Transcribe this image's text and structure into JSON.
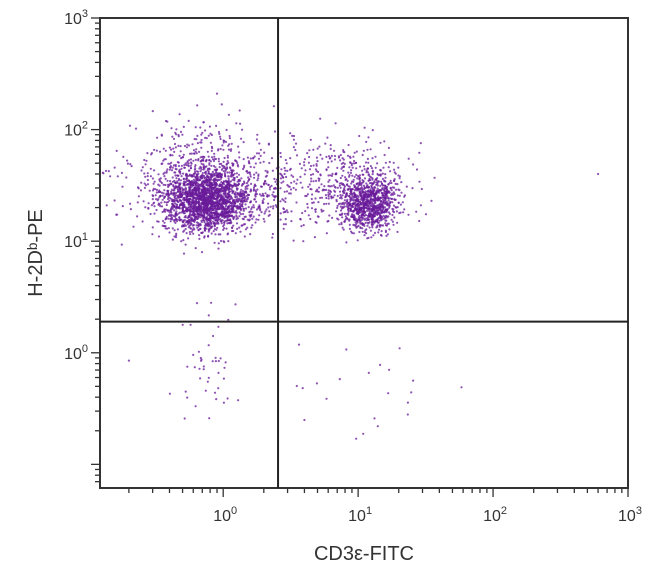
{
  "chart_data": {
    "type": "scatter",
    "title": "",
    "xlabel": "CD3ε-FITC",
    "ylabel": "H-2Dᵇ-PE",
    "x_scale": "log",
    "y_scale": "log",
    "xlim": [
      0.1222,
      1000
    ],
    "ylim": [
      0.0614,
      1000
    ],
    "x_ticks": [
      {
        "value": 1,
        "base": "10",
        "exp": "0"
      },
      {
        "value": 10,
        "base": "10",
        "exp": "1"
      },
      {
        "value": 100,
        "base": "10",
        "exp": "2"
      },
      {
        "value": 1000,
        "base": "10",
        "exp": "3"
      }
    ],
    "y_ticks": [
      {
        "value": 1,
        "base": "10",
        "exp": "0"
      },
      {
        "value": 10,
        "base": "10",
        "exp": "1"
      },
      {
        "value": 100,
        "base": "10",
        "exp": "2"
      },
      {
        "value": 1000,
        "base": "10",
        "exp": "3"
      }
    ],
    "quadrant_gates": {
      "x": 2.55,
      "y": 1.9
    },
    "grid": false,
    "legend": "none",
    "colors": {
      "points": "#6a1b9a",
      "axes": "#333333",
      "gates": "#222222"
    },
    "series": [
      {
        "populations": [
          {
            "center": [
              0.75,
              23
            ],
            "spread_log": [
              0.16,
              0.14
            ],
            "count": 2000
          },
          {
            "center": [
              0.7,
              40
            ],
            "spread_log": [
              0.28,
              0.22
            ],
            "count": 550
          },
          {
            "center": [
              12,
              22
            ],
            "spread_log": [
              0.1,
              0.12
            ],
            "count": 950
          },
          {
            "center": [
              8,
              35
            ],
            "spread_log": [
              0.25,
              0.2
            ],
            "count": 380
          },
          {
            "center": [
              2.0,
              28
            ],
            "spread_log": [
              0.2,
              0.18
            ],
            "count": 160
          },
          {
            "center": [
              0.8,
              0.8
            ],
            "spread_log": [
              0.15,
              0.25
            ],
            "count": 45
          },
          {
            "center": [
              10,
              0.5
            ],
            "spread_log": [
              0.3,
              0.3
            ],
            "count": 20
          }
        ],
        "points": [
          {
            "x": 600,
            "y": 40
          },
          {
            "x": 0.2,
            "y": 0.85
          },
          {
            "x": 0.9,
            "y": 210
          },
          {
            "x": 4.0,
            "y": 0.25
          },
          {
            "x": 14,
            "y": 0.22
          }
        ]
      }
    ]
  }
}
